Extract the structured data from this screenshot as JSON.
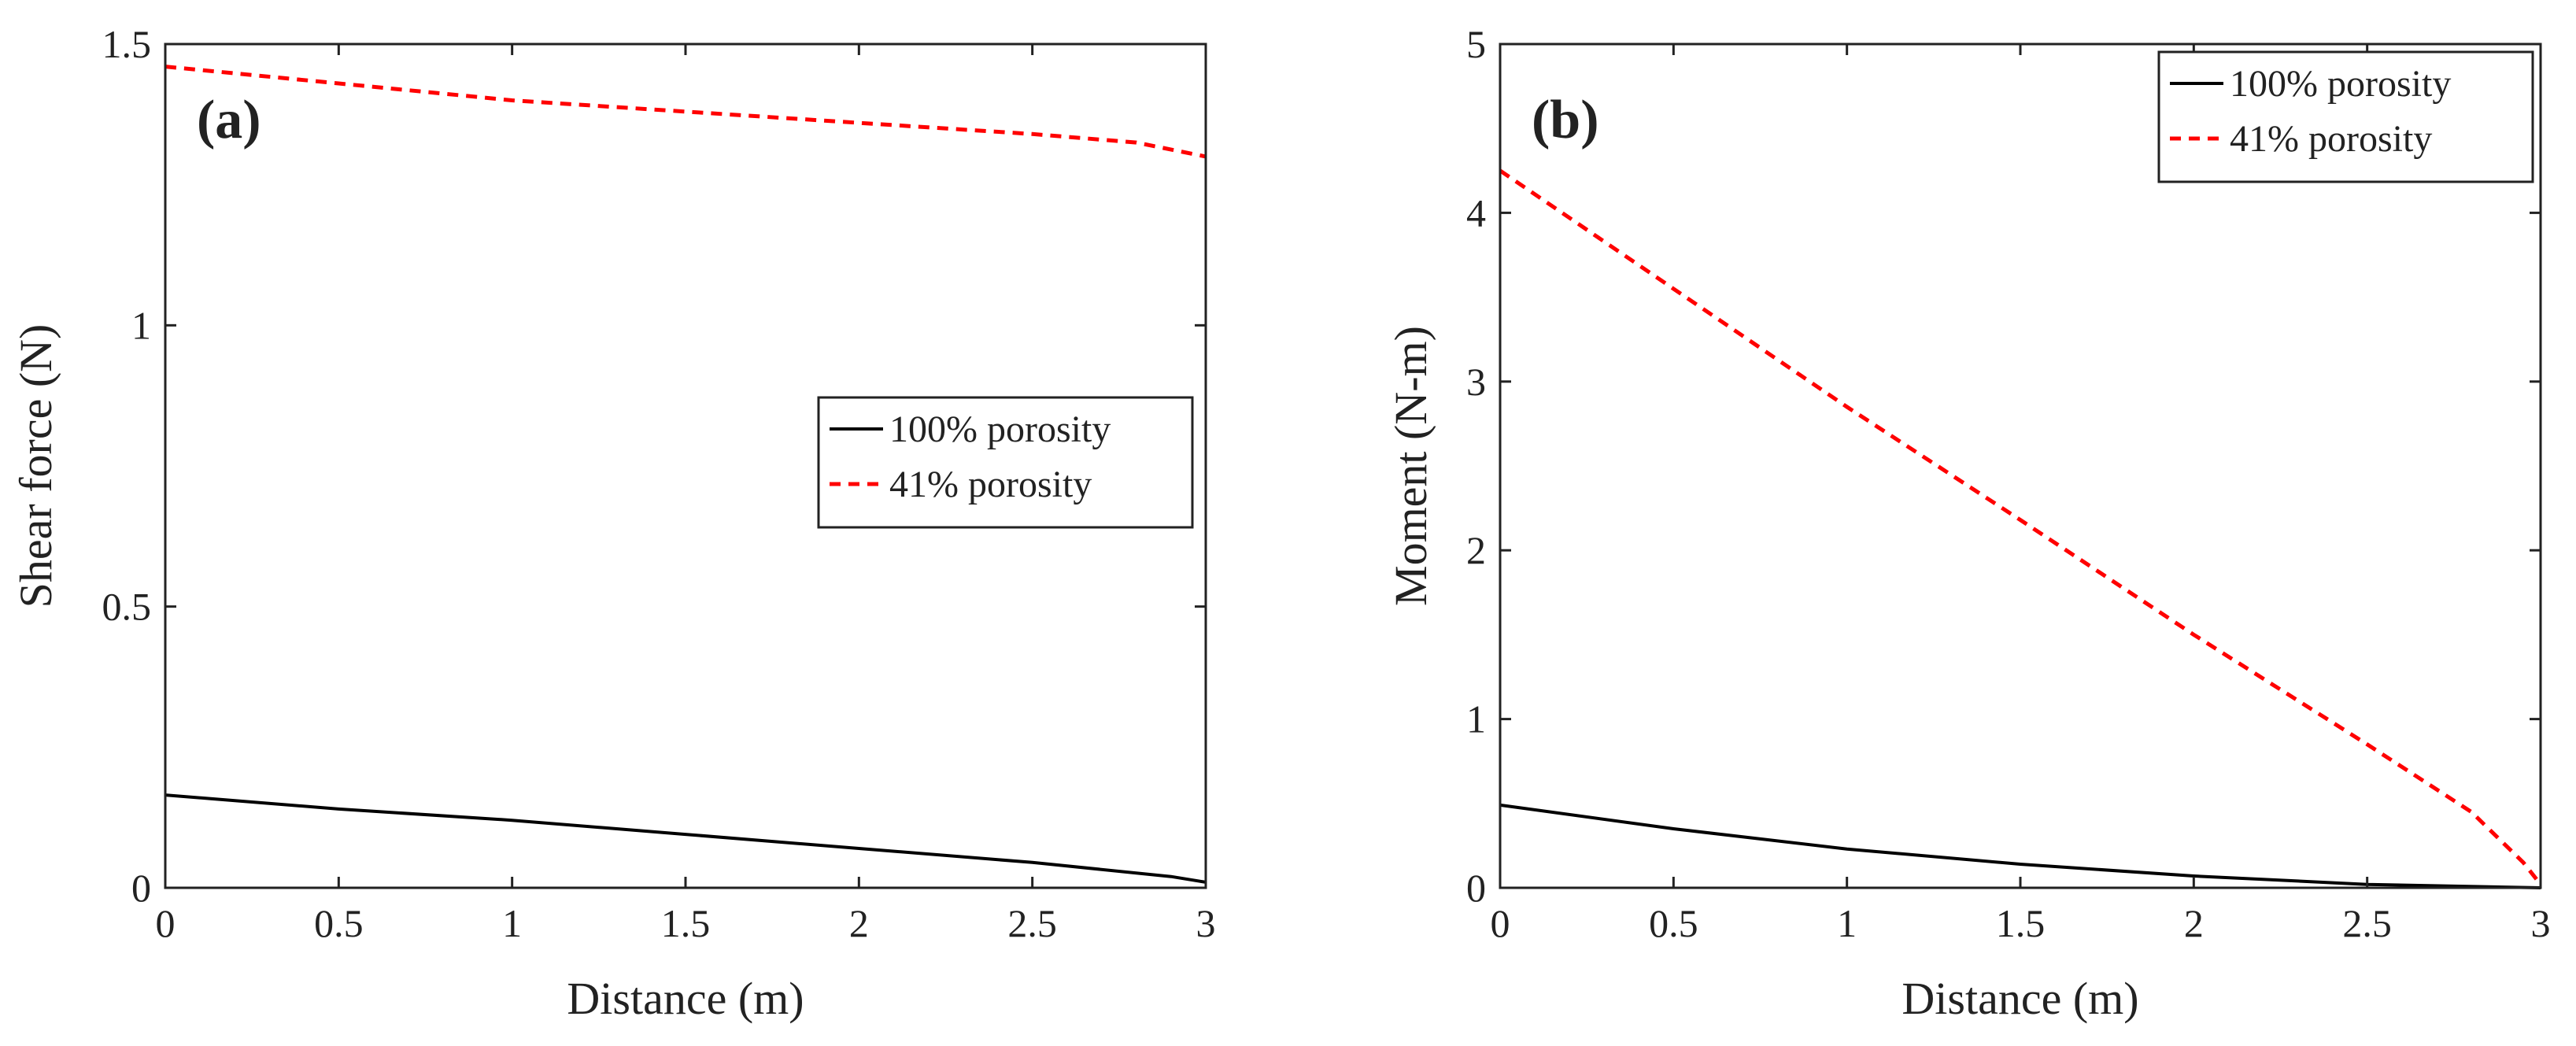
{
  "chart_data": [
    {
      "type": "line",
      "panel_label": "(a)",
      "xlabel": "Distance (m)",
      "ylabel": "Shear force (N)",
      "xlim": [
        0,
        3
      ],
      "ylim": [
        0,
        1.5
      ],
      "xticks": [
        0,
        0.5,
        1,
        1.5,
        2,
        2.5,
        3
      ],
      "yticks": [
        0,
        0.5,
        1,
        1.5
      ],
      "xtick_labels": [
        "0",
        "0.5",
        "1",
        "1.5",
        "2",
        "2.5",
        "3"
      ],
      "ytick_labels": [
        "0",
        "0.5",
        "1",
        "1.5"
      ],
      "legend_position": "center-right",
      "series": [
        {
          "name": "100% porosity",
          "style": "solid",
          "color": "#000000",
          "x": [
            0,
            0.5,
            1,
            1.5,
            2,
            2.5,
            2.9,
            3
          ],
          "y": [
            0.165,
            0.14,
            0.12,
            0.095,
            0.07,
            0.045,
            0.02,
            0.01
          ]
        },
        {
          "name": "41% porosity",
          "style": "dashed",
          "color": "#ff0000",
          "x": [
            0,
            0.5,
            1,
            1.5,
            2,
            2.5,
            2.8,
            3
          ],
          "y": [
            1.46,
            1.43,
            1.4,
            1.38,
            1.36,
            1.34,
            1.325,
            1.3
          ]
        }
      ]
    },
    {
      "type": "line",
      "panel_label": "(b)",
      "xlabel": "Distance (m)",
      "ylabel": "Moment (N-m)",
      "xlim": [
        0,
        3
      ],
      "ylim": [
        0,
        5
      ],
      "xticks": [
        0,
        0.5,
        1,
        1.5,
        2,
        2.5,
        3
      ],
      "yticks": [
        0,
        1,
        2,
        3,
        4,
        5
      ],
      "xtick_labels": [
        "0",
        "0.5",
        "1",
        "1.5",
        "2",
        "2.5",
        "3"
      ],
      "ytick_labels": [
        "0",
        "1",
        "2",
        "3",
        "4",
        "5"
      ],
      "legend_position": "top-right",
      "series": [
        {
          "name": "100% porosity",
          "style": "solid",
          "color": "#000000",
          "x": [
            0,
            0.5,
            1,
            1.5,
            2,
            2.5,
            3
          ],
          "y": [
            0.49,
            0.35,
            0.23,
            0.14,
            0.07,
            0.02,
            0
          ]
        },
        {
          "name": "41% porosity",
          "style": "dashed",
          "color": "#ff0000",
          "x": [
            0,
            0.5,
            1,
            1.5,
            2,
            2.5,
            2.8,
            2.95,
            3
          ],
          "y": [
            4.25,
            3.55,
            2.85,
            2.18,
            1.5,
            0.85,
            0.45,
            0.15,
            0.02
          ]
        }
      ]
    }
  ]
}
